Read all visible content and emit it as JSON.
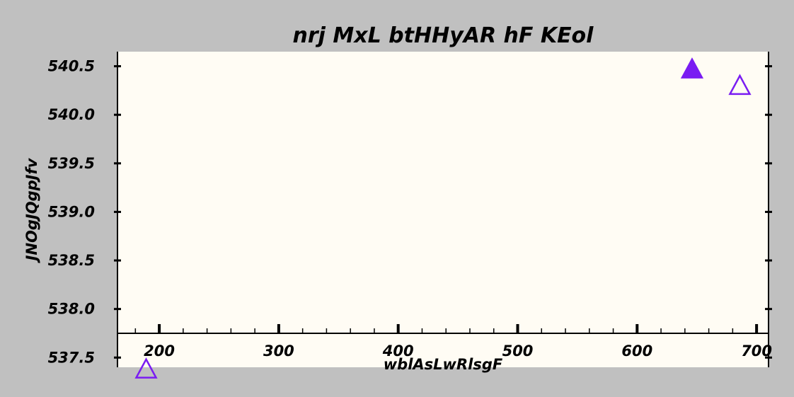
{
  "chart_data": {
    "type": "scatter",
    "title": "nrj MxL btHHyAR hF KEol",
    "xlabel": "wblAsLwRlsgF",
    "ylabel": "JNOgJQgpJfv",
    "xlim": [
      165,
      710
    ],
    "ylim": [
      537.4,
      540.65
    ],
    "x_ticks": [
      200,
      300,
      400,
      500,
      600,
      700
    ],
    "x_tick_labels": [
      "200",
      "300",
      "400",
      "500",
      "600",
      "700"
    ],
    "y_ticks": [
      537.5,
      538.0,
      538.5,
      539.0,
      539.5,
      540.0,
      540.5
    ],
    "y_tick_labels": [
      "537.5",
      "538.0",
      "538.5",
      "539.0",
      "539.5",
      "540.0",
      "540.5"
    ],
    "x_axis_at_y": 537.75,
    "grid": false,
    "colors": {
      "background": "#c0c0c0",
      "plot_background": "#fffcf4",
      "marker": "#7a1cf2",
      "axis": "#000000"
    },
    "points": [
      {
        "x": 189,
        "y": 537.38,
        "marker": "triangle-open"
      },
      {
        "x": 646,
        "y": 540.47,
        "marker": "triangle-filled"
      },
      {
        "x": 686,
        "y": 540.3,
        "marker": "triangle-open"
      }
    ]
  }
}
